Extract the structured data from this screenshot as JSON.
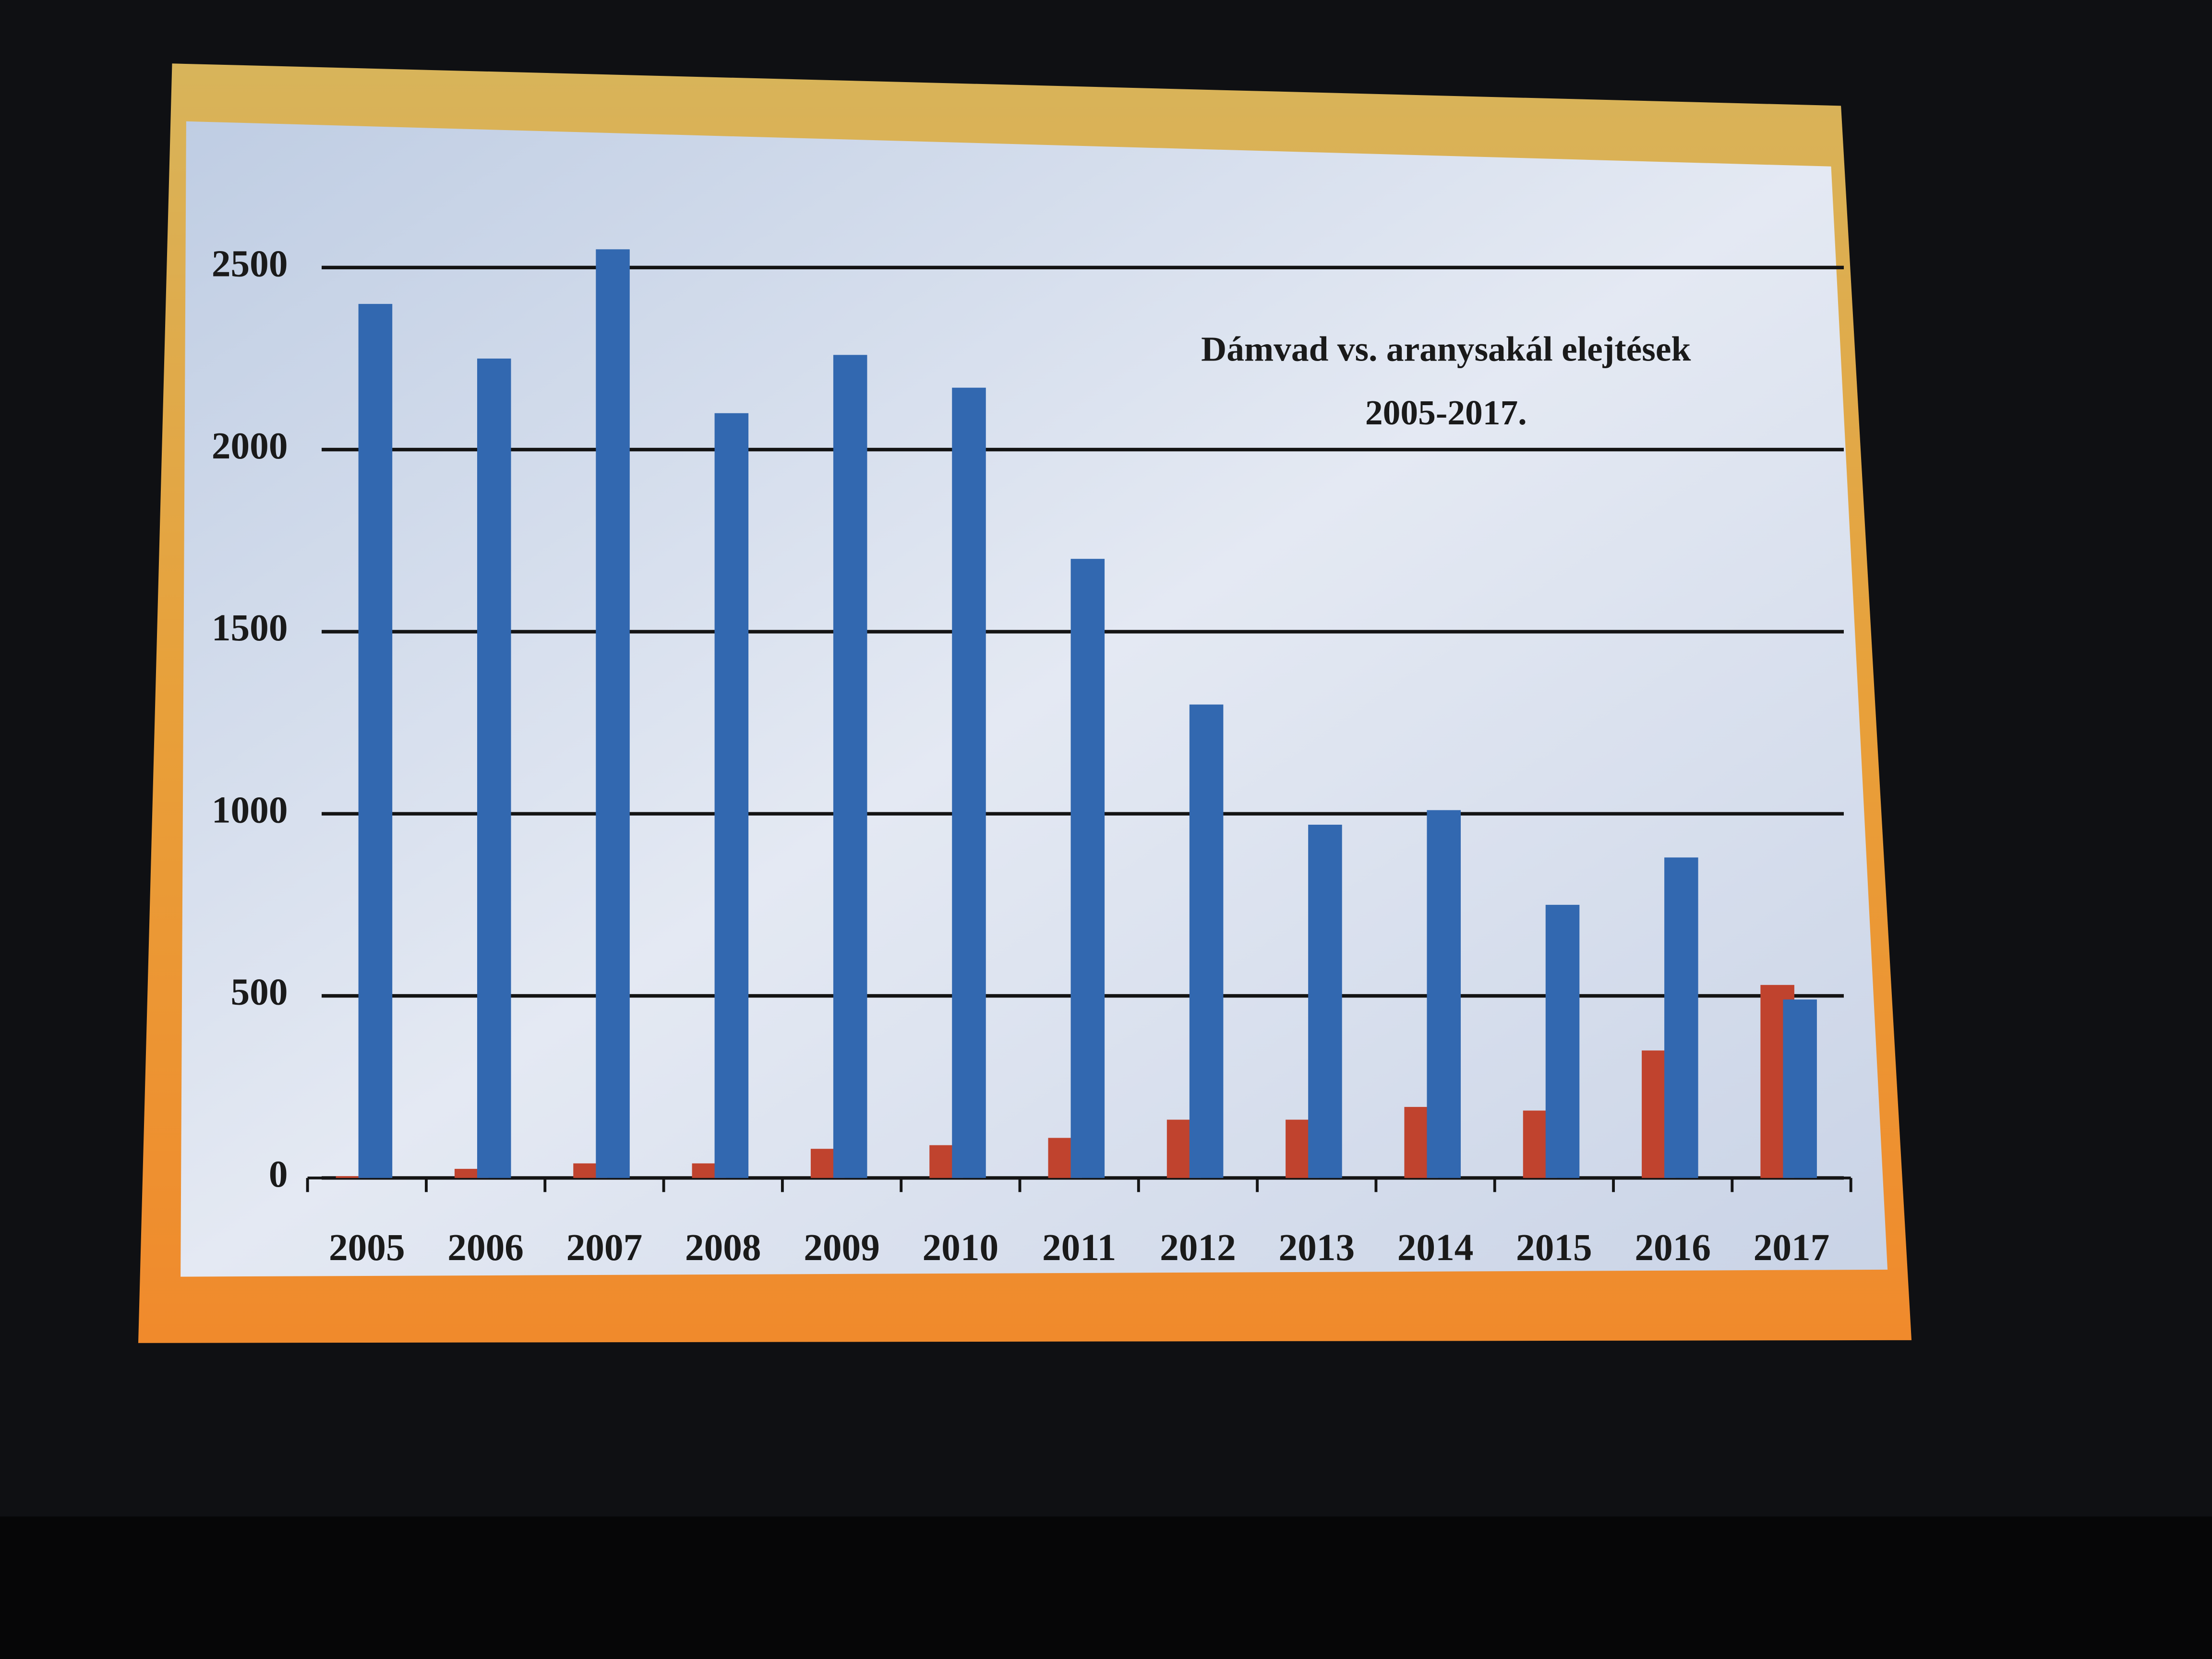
{
  "chart_data": {
    "type": "bar",
    "title": "Dámvad vs. aranysakál elejtések",
    "subtitle": "2005-2017.",
    "categories": [
      "2005",
      "2006",
      "2007",
      "2008",
      "2009",
      "2010",
      "2011",
      "2012",
      "2013",
      "2014",
      "2015",
      "2016",
      "2017"
    ],
    "series": [
      {
        "color": "#c0432e",
        "values": [
          5,
          25,
          40,
          40,
          80,
          90,
          110,
          160,
          160,
          195,
          185,
          350,
          530
        ]
      },
      {
        "color": "#3268b0",
        "values": [
          2400,
          2250,
          2550,
          2100,
          2260,
          2170,
          1700,
          1300,
          970,
          1010,
          750,
          880,
          490
        ]
      }
    ],
    "ylim": [
      0,
      2700
    ],
    "yticks": [
      0,
      500,
      1000,
      1500,
      2000,
      2500
    ],
    "grid": true
  }
}
